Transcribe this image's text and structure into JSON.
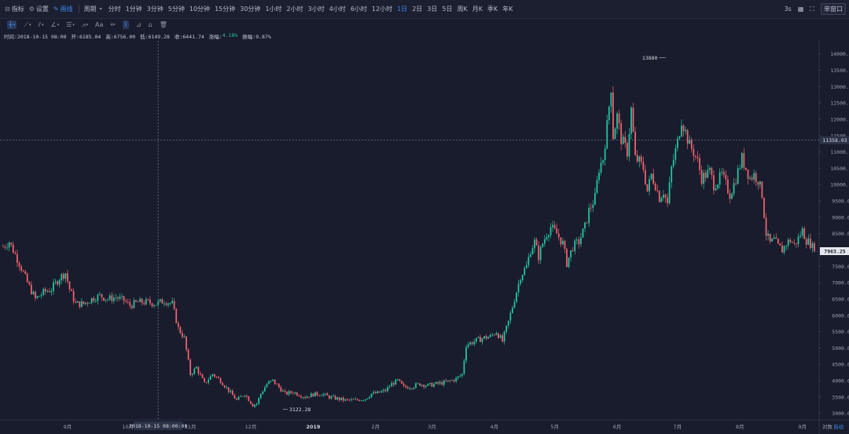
{
  "topbar": {
    "indicators": "指标",
    "settings": "设置",
    "drawing": "画线",
    "period_label": "周期",
    "periods": [
      "分时",
      "1分钟",
      "3分钟",
      "5分钟",
      "10分钟",
      "15分钟",
      "30分钟",
      "1小时",
      "2小时",
      "3小时",
      "4小时",
      "6小时",
      "12小时",
      "1日",
      "2日",
      "3日",
      "5日",
      "周K",
      "月K",
      "季K",
      "年K"
    ],
    "active_period": "1日",
    "refresh": "3s",
    "single_window": "单窗口"
  },
  "toolbar": {
    "text_tool": "Aa"
  },
  "info": {
    "time": "时间:2018-10-15 08:00",
    "open": "开:6185.04",
    "high": "高:6756.00",
    "low": "低:6149.28",
    "close": "收:6441.74",
    "change_label": "涨幅:",
    "change_value": "4.18%",
    "amplitude": "振幅:9.87%"
  },
  "crosshair": {
    "date_label": "2018-10-15 08:00:00",
    "price_label": "11358.03"
  },
  "last_price": "7963.25",
  "bottom": {
    "log_label": "对数",
    "auto_label": "自动"
  },
  "colors": {
    "up": "#25c4a0",
    "down": "#f0616d",
    "background": "#181c2c",
    "accent": "#3f8df0"
  },
  "chart_data": {
    "type": "candlestick",
    "ylim": [
      2800,
      14400
    ],
    "y_ticks": [
      3000,
      3500,
      4000,
      4500,
      5000,
      5500,
      6000,
      6500,
      7000,
      7500,
      8000,
      8500,
      9000,
      9500,
      10000,
      10500,
      11000,
      11500,
      12000,
      12500,
      13000,
      13500,
      14000
    ],
    "y_tick_labels": [
      "3000.00",
      "3500.00",
      "4000.00",
      "4500.00",
      "5000.00",
      "5500.00",
      "6000.00",
      "6500.00",
      "7000.00",
      "7500.00",
      "8000.00",
      "8500.00",
      "9000.00",
      "9500.00",
      "10000.00",
      "10500.00",
      "11000.00",
      "11500.00",
      "12000.00",
      "12500.00",
      "13000.00",
      "13500.00",
      "14000.00"
    ],
    "x_labels": [
      "9月",
      "10月",
      "11月",
      "12月",
      "2019",
      "2月",
      "3月",
      "4月",
      "5月",
      "6月",
      "7月",
      "8月",
      "9月",
      "10月"
    ],
    "x_label_days": [
      32,
      62,
      93,
      123,
      154,
      185,
      213,
      244,
      274,
      305,
      335,
      366,
      397,
      427
    ],
    "max_annotation": {
      "value": "13880",
      "day": 329
    },
    "min_annotation": {
      "value": "3122.28",
      "day": 139
    },
    "anchors": [
      [
        0,
        8100
      ],
      [
        3,
        8250
      ],
      [
        8,
        7600
      ],
      [
        12,
        7000
      ],
      [
        16,
        6500
      ],
      [
        20,
        6700
      ],
      [
        24,
        6800
      ],
      [
        28,
        7150
      ],
      [
        31,
        7300
      ],
      [
        33,
        6800
      ],
      [
        36,
        6350
      ],
      [
        40,
        6350
      ],
      [
        44,
        6500
      ],
      [
        48,
        6600
      ],
      [
        52,
        6500
      ],
      [
        56,
        6550
      ],
      [
        60,
        6450
      ],
      [
        63,
        6300
      ],
      [
        67,
        6400
      ],
      [
        72,
        6400
      ],
      [
        76,
        6350
      ],
      [
        80,
        6450
      ],
      [
        84,
        6350
      ],
      [
        87,
        5600
      ],
      [
        90,
        5300
      ],
      [
        93,
        4200
      ],
      [
        96,
        4400
      ],
      [
        100,
        3900
      ],
      [
        104,
        4200
      ],
      [
        108,
        4000
      ],
      [
        112,
        3700
      ],
      [
        116,
        3400
      ],
      [
        120,
        3600
      ],
      [
        124,
        3250
      ],
      [
        126,
        3300
      ],
      [
        128,
        3600
      ],
      [
        131,
        3900
      ],
      [
        134,
        4000
      ],
      [
        137,
        3800
      ],
      [
        140,
        3600
      ],
      [
        144,
        3650
      ],
      [
        148,
        3550
      ],
      [
        150,
        3500
      ],
      [
        154,
        3580
      ],
      [
        158,
        3600
      ],
      [
        162,
        3500
      ],
      [
        166,
        3450
      ],
      [
        170,
        3400
      ],
      [
        175,
        3400
      ],
      [
        180,
        3450
      ],
      [
        183,
        3600
      ],
      [
        186,
        3620
      ],
      [
        190,
        3700
      ],
      [
        193,
        3900
      ],
      [
        196,
        4000
      ],
      [
        199,
        3800
      ],
      [
        203,
        3820
      ],
      [
        207,
        3900
      ],
      [
        211,
        3850
      ],
      [
        215,
        3900
      ],
      [
        220,
        3950
      ],
      [
        225,
        4050
      ],
      [
        228,
        4200
      ],
      [
        230,
        5100
      ],
      [
        234,
        5200
      ],
      [
        238,
        5300
      ],
      [
        242,
        5350
      ],
      [
        245,
        5500
      ],
      [
        248,
        5200
      ],
      [
        251,
        5800
      ],
      [
        254,
        6500
      ],
      [
        257,
        7200
      ],
      [
        260,
        7500
      ],
      [
        262,
        8000
      ],
      [
        264,
        8250
      ],
      [
        266,
        7800
      ],
      [
        268,
        8200
      ],
      [
        270,
        8500
      ],
      [
        272,
        8700
      ],
      [
        275,
        8500
      ],
      [
        278,
        8200
      ],
      [
        280,
        7600
      ],
      [
        283,
        8100
      ],
      [
        286,
        8250
      ],
      [
        289,
        8700
      ],
      [
        291,
        9200
      ],
      [
        294,
        9600
      ],
      [
        296,
        10500
      ],
      [
        298,
        10800
      ],
      [
        300,
        11800
      ],
      [
        302,
        13000
      ],
      [
        303,
        11500
      ],
      [
        305,
        12100
      ],
      [
        307,
        11400
      ],
      [
        310,
        11000
      ],
      [
        312,
        12300
      ],
      [
        314,
        10800
      ],
      [
        316,
        10700
      ],
      [
        318,
        10500
      ],
      [
        320,
        9800
      ],
      [
        322,
        10300
      ],
      [
        324,
        10000
      ],
      [
        326,
        9600
      ],
      [
        328,
        9800
      ],
      [
        330,
        9400
      ],
      [
        332,
        10500
      ],
      [
        335,
        11300
      ],
      [
        337,
        12000
      ],
      [
        339,
        11600
      ],
      [
        341,
        11200
      ],
      [
        343,
        11000
      ],
      [
        345,
        10700
      ],
      [
        347,
        10200
      ],
      [
        349,
        10300
      ],
      [
        351,
        10400
      ],
      [
        353,
        10000
      ],
      [
        355,
        10100
      ],
      [
        357,
        10300
      ],
      [
        359,
        10000
      ],
      [
        361,
        9700
      ],
      [
        363,
        10000
      ],
      [
        365,
        10400
      ],
      [
        367,
        10800
      ],
      [
        369,
        10500
      ],
      [
        371,
        10200
      ],
      [
        373,
        10300
      ],
      [
        375,
        10150
      ],
      [
        377,
        9700
      ],
      [
        379,
        8500
      ],
      [
        381,
        8200
      ],
      [
        383,
        8300
      ],
      [
        385,
        8100
      ],
      [
        387,
        8000
      ],
      [
        389,
        8200
      ],
      [
        391,
        8300
      ],
      [
        393,
        8150
      ],
      [
        395,
        8350
      ],
      [
        397,
        8600
      ],
      [
        399,
        8300
      ],
      [
        401,
        8200
      ],
      [
        403,
        7963
      ]
    ]
  }
}
